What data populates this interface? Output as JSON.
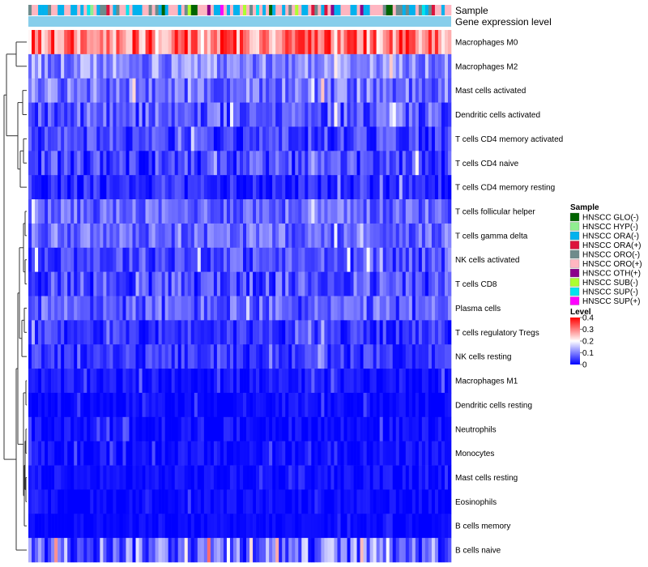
{
  "chart_data": {
    "type": "heatmap",
    "title": "",
    "column_annotations": [
      {
        "name": "Sample"
      },
      {
        "name": "Gene expression level"
      }
    ],
    "rows": [
      {
        "label": "Macrophages M0",
        "mean": 0.3,
        "spread": 0.1
      },
      {
        "label": "Macrophages M2",
        "mean": 0.11,
        "spread": 0.06
      },
      {
        "label": "Mast cells activated",
        "mean": 0.09,
        "spread": 0.06
      },
      {
        "label": "Dendritic cells activated",
        "mean": 0.07,
        "spread": 0.06
      },
      {
        "label": "T cells CD4 memory activated",
        "mean": 0.05,
        "spread": 0.05
      },
      {
        "label": "T cells CD4 naive",
        "mean": 0.05,
        "spread": 0.06
      },
      {
        "label": "T cells CD4 memory resting",
        "mean": 0.03,
        "spread": 0.04
      },
      {
        "label": "T cells follicular helper",
        "mean": 0.08,
        "spread": 0.05
      },
      {
        "label": "T cells gamma delta",
        "mean": 0.08,
        "spread": 0.05
      },
      {
        "label": "NK cells activated",
        "mean": 0.06,
        "spread": 0.05
      },
      {
        "label": "T cells CD8",
        "mean": 0.06,
        "spread": 0.06
      },
      {
        "label": "Plasma cells",
        "mean": 0.07,
        "spread": 0.06
      },
      {
        "label": "T cells regulatory  Tregs",
        "mean": 0.04,
        "spread": 0.04
      },
      {
        "label": "NK cells resting",
        "mean": 0.04,
        "spread": 0.04
      },
      {
        "label": "Macrophages M1",
        "mean": 0.015,
        "spread": 0.025
      },
      {
        "label": "Dendritic cells resting",
        "mean": 0.005,
        "spread": 0.02
      },
      {
        "label": "Neutrophils",
        "mean": 0.01,
        "spread": 0.025
      },
      {
        "label": "Monocytes",
        "mean": 0.01,
        "spread": 0.025
      },
      {
        "label": "Mast cells resting",
        "mean": 0.01,
        "spread": 0.02
      },
      {
        "label": "Eosinophils",
        "mean": 0.005,
        "spread": 0.02
      },
      {
        "label": "B cells memory",
        "mean": 0.005,
        "spread": 0.015
      },
      {
        "label": "B cells naive",
        "mean": 0.09,
        "spread": 0.09
      }
    ],
    "n_samples": 130,
    "sample_groups": [
      {
        "label": "HNSCC GLO(-)",
        "color": "#006400"
      },
      {
        "label": "HNSCC HYP(-)",
        "color": "#90ee90"
      },
      {
        "label": "HNSCC ORA(-)",
        "color": "#00b2ee"
      },
      {
        "label": "HNSCC ORA(+)",
        "color": "#dc143c"
      },
      {
        "label": "HNSCC ORO(-)",
        "color": "#6e8b8b"
      },
      {
        "label": "HNSCC ORO(+)",
        "color": "#ffb6c1"
      },
      {
        "label": "HNSCC OTH(+)",
        "color": "#8b008b"
      },
      {
        "label": "HNSCC SUB(-)",
        "color": "#adff2f"
      },
      {
        "label": "HNSCC SUP(-)",
        "color": "#00e5ee"
      },
      {
        "label": "HNSCC SUP(+)",
        "color": "#ff00ff"
      }
    ],
    "expression_level_color": "#87ceeb",
    "color_scale": {
      "title": "Level",
      "min": 0,
      "max": 0.4,
      "ticks": [
        0.4,
        0.3,
        0.2,
        0.1,
        0
      ],
      "tick_labels": [
        "0.4",
        "0.3",
        "0.2",
        "0.1",
        "0"
      ],
      "colors": [
        "#0000ff",
        "#ffffff",
        "#ff0000"
      ],
      "midpoint": 0.2
    },
    "legend_position": "right"
  },
  "legend": {
    "sample_title": "Sample",
    "level_title": "Level"
  }
}
